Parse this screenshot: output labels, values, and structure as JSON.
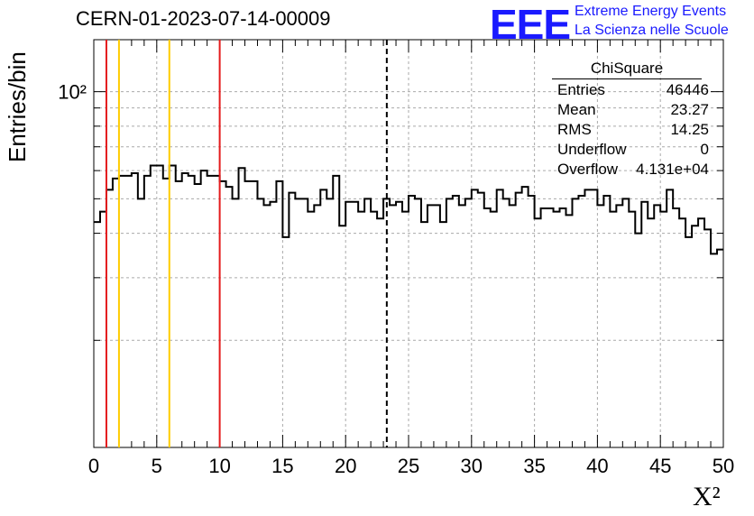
{
  "title": "CERN-01-2023-07-14-00009",
  "logo": {
    "mark": "EEE",
    "line1": "Extreme Energy Events",
    "line2": "La Scienza nelle Scuole",
    "color": "#1a1aff"
  },
  "stats_box": {
    "name": "ChiSquare",
    "rows": [
      {
        "key": "Entries",
        "value": "46446"
      },
      {
        "key": "Mean",
        "value": "23.27"
      },
      {
        "key": "RMS",
        "value": "14.25"
      },
      {
        "key": "Underflow",
        "value": "0"
      },
      {
        "key": "Overflow",
        "value": "4.131e+04"
      }
    ]
  },
  "chart_data": {
    "type": "histogram",
    "title": "CERN-01-2023-07-14-00009",
    "xlabel": "X²",
    "ylabel": "Entries/bin",
    "x_range": [
      0,
      50
    ],
    "bin_width": 0.5,
    "y_log": true,
    "y_range": [
      10,
      140
    ],
    "x_ticks": [
      0,
      5,
      10,
      15,
      20,
      25,
      30,
      35,
      40,
      45,
      50
    ],
    "y_tick_label": "10²",
    "grid": true,
    "line_color": "#000000",
    "values": [
      43,
      46,
      53,
      57,
      58,
      58,
      59,
      50,
      58,
      62,
      62,
      57,
      62,
      56,
      59,
      58,
      55,
      60,
      58,
      58,
      56,
      54,
      50,
      61,
      56,
      56,
      50,
      48,
      49,
      56,
      39,
      52,
      50,
      50,
      46,
      48,
      53,
      50,
      58,
      42,
      49,
      49,
      46,
      50,
      46,
      44,
      50,
      48,
      49,
      46,
      51,
      50,
      43,
      48,
      48,
      43,
      50,
      51,
      48,
      50,
      53,
      52,
      47,
      46,
      53,
      50,
      48,
      52,
      54,
      51,
      44,
      47,
      47,
      46,
      47,
      45,
      50,
      51,
      53,
      53,
      48,
      51,
      46,
      48,
      50,
      46,
      40,
      49,
      44,
      48,
      46,
      53,
      47,
      44,
      39,
      42,
      44,
      41,
      35,
      36
    ],
    "vertical_lines": [
      {
        "x": 1,
        "color": "#e41a1c",
        "style": "solid"
      },
      {
        "x": 2,
        "color": "#ffcc00",
        "style": "solid"
      },
      {
        "x": 6,
        "color": "#ffcc00",
        "style": "solid"
      },
      {
        "x": 10,
        "color": "#e41a1c",
        "style": "solid"
      },
      {
        "x": 23.27,
        "color": "#000000",
        "style": "dashed"
      }
    ]
  }
}
